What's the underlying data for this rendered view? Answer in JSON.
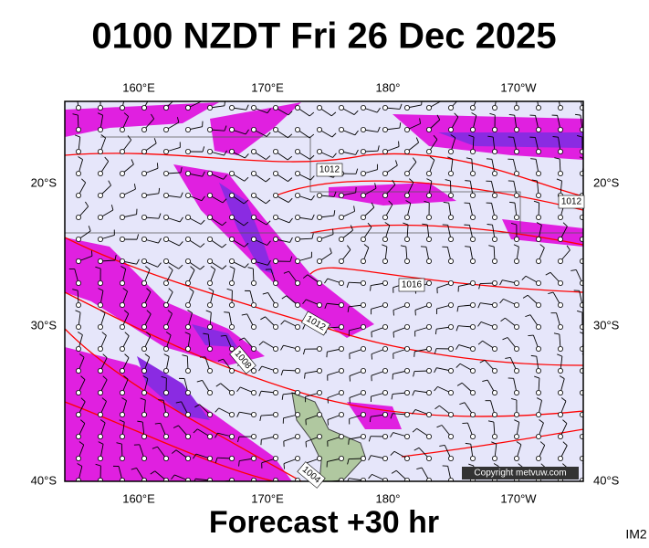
{
  "header": {
    "title": "0100 NZDT Fri 26 Dec 2025"
  },
  "map": {
    "top_labels": [
      "160°E",
      "170°E",
      "180°",
      "170°W"
    ],
    "bottom_labels": [
      "160°E",
      "170°E",
      "180°",
      "170°W"
    ],
    "left_labels": [
      "20°S",
      "30°S",
      "40°S"
    ],
    "right_labels": [
      "20°S",
      "30°S",
      "40°S"
    ],
    "isobar_labels": [
      "1012",
      "1012",
      "1016",
      "1012",
      "1008",
      "1004"
    ],
    "copyright": "Copyright metvuw.com"
  },
  "footer": {
    "forecast": "Forecast +30 hr",
    "code": "IM2"
  }
}
